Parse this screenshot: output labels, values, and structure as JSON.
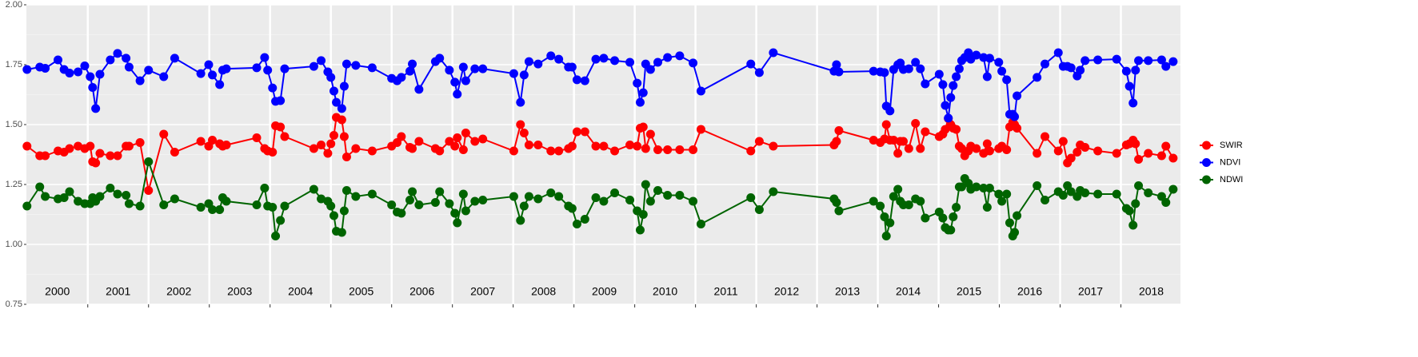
{
  "chart_data": {
    "type": "line",
    "x": [
      2000.0,
      2000.21,
      2000.3,
      2000.51,
      2000.61,
      2000.7,
      2000.84,
      2000.95,
      2001.04,
      2001.08,
      2001.13,
      2001.2,
      2001.37,
      2001.49,
      2001.63,
      2001.68,
      2001.86,
      2002.0,
      2002.25,
      2002.43,
      2002.86,
      2002.99,
      2003.05,
      2003.17,
      2003.22,
      2003.28,
      2003.78,
      2003.91,
      2003.96,
      2004.04,
      2004.09,
      2004.17,
      2004.24,
      2004.72,
      2004.84,
      2004.95,
      2005.0,
      2005.05,
      2005.09,
      2005.18,
      2005.22,
      2005.26,
      2005.41,
      2005.68,
      2006.0,
      2006.09,
      2006.16,
      2006.3,
      2006.34,
      2006.45,
      2006.72,
      2006.79,
      2006.95,
      2007.04,
      2007.08,
      2007.18,
      2007.22,
      2007.37,
      2007.5,
      2008.01,
      2008.12,
      2008.18,
      2008.26,
      2008.41,
      2008.62,
      2008.75,
      2008.91,
      2008.97,
      2009.05,
      2009.18,
      2009.36,
      2009.49,
      2009.67,
      2009.92,
      2010.04,
      2010.09,
      2010.14,
      2010.18,
      2010.26,
      2010.38,
      2010.54,
      2010.74,
      2010.96,
      2011.09,
      2011.91,
      2012.05,
      2012.28,
      2013.28,
      2013.32,
      2013.36,
      2013.93,
      2014.04,
      2014.11,
      2014.14,
      2014.2,
      2014.26,
      2014.33,
      2014.37,
      2014.42,
      2014.51,
      2014.62,
      2014.7,
      2014.78,
      2015.01,
      2015.07,
      2015.11,
      2015.16,
      2015.2,
      2015.24,
      2015.29,
      2015.34,
      2015.38,
      2015.43,
      2015.49,
      2015.53,
      2015.62,
      2015.74,
      2015.8,
      2015.84,
      2015.99,
      2016.04,
      2016.12,
      2016.17,
      2016.22,
      2016.25,
      2016.29,
      2016.62,
      2016.75,
      2016.97,
      2017.05,
      2017.12,
      2017.18,
      2017.28,
      2017.33,
      2017.41,
      2017.62,
      2017.93,
      2018.09,
      2018.14,
      2018.2,
      2018.24,
      2018.29,
      2018.45,
      2018.67,
      2018.74,
      2018.86
    ],
    "series": [
      {
        "name": "SWIR",
        "color": "#ff0000",
        "values": [
          1.41,
          1.37,
          1.37,
          1.39,
          1.385,
          1.4,
          1.41,
          1.4,
          1.41,
          1.345,
          1.34,
          1.38,
          1.37,
          1.37,
          1.41,
          1.41,
          1.425,
          1.225,
          1.46,
          1.385,
          1.43,
          1.41,
          1.435,
          1.42,
          1.41,
          1.415,
          1.445,
          1.4,
          1.39,
          1.385,
          1.495,
          1.49,
          1.45,
          1.4,
          1.415,
          1.38,
          1.42,
          1.455,
          1.53,
          1.52,
          1.45,
          1.365,
          1.4,
          1.39,
          1.41,
          1.425,
          1.45,
          1.405,
          1.4,
          1.43,
          1.4,
          1.39,
          1.43,
          1.41,
          1.445,
          1.395,
          1.465,
          1.43,
          1.44,
          1.39,
          1.5,
          1.465,
          1.415,
          1.415,
          1.39,
          1.39,
          1.4,
          1.41,
          1.47,
          1.47,
          1.41,
          1.41,
          1.39,
          1.415,
          1.41,
          1.485,
          1.49,
          1.4,
          1.46,
          1.395,
          1.395,
          1.395,
          1.395,
          1.48,
          1.39,
          1.43,
          1.41,
          1.415,
          1.43,
          1.475,
          1.435,
          1.425,
          1.44,
          1.5,
          1.435,
          1.435,
          1.38,
          1.43,
          1.43,
          1.4,
          1.505,
          1.4,
          1.47,
          1.45,
          1.46,
          1.48,
          1.525,
          1.5,
          1.485,
          1.48,
          1.41,
          1.4,
          1.37,
          1.39,
          1.41,
          1.4,
          1.38,
          1.42,
          1.39,
          1.4,
          1.41,
          1.395,
          1.49,
          1.51,
          1.5,
          1.485,
          1.38,
          1.45,
          1.39,
          1.43,
          1.34,
          1.36,
          1.385,
          1.415,
          1.405,
          1.39,
          1.38,
          1.415,
          1.42,
          1.435,
          1.42,
          1.355,
          1.38,
          1.37,
          1.41,
          1.36
        ]
      },
      {
        "name": "NDVI",
        "color": "#0000ff",
        "values": [
          1.73,
          1.74,
          1.735,
          1.77,
          1.73,
          1.715,
          1.72,
          1.745,
          1.7,
          1.655,
          1.567,
          1.71,
          1.77,
          1.797,
          1.777,
          1.74,
          1.683,
          1.727,
          1.7,
          1.777,
          1.713,
          1.75,
          1.707,
          1.667,
          1.727,
          1.733,
          1.737,
          1.78,
          1.727,
          1.653,
          1.597,
          1.6,
          1.733,
          1.743,
          1.767,
          1.72,
          1.697,
          1.64,
          1.593,
          1.567,
          1.66,
          1.753,
          1.747,
          1.737,
          1.693,
          1.683,
          1.697,
          1.723,
          1.753,
          1.647,
          1.763,
          1.777,
          1.727,
          1.677,
          1.627,
          1.74,
          1.683,
          1.733,
          1.733,
          1.713,
          1.593,
          1.707,
          1.763,
          1.753,
          1.787,
          1.773,
          1.74,
          1.74,
          1.687,
          1.683,
          1.773,
          1.777,
          1.767,
          1.76,
          1.673,
          1.593,
          1.633,
          1.753,
          1.73,
          1.76,
          1.78,
          1.787,
          1.757,
          1.64,
          1.753,
          1.717,
          1.8,
          1.723,
          1.75,
          1.72,
          1.723,
          1.72,
          1.717,
          1.577,
          1.557,
          1.73,
          1.75,
          1.757,
          1.73,
          1.733,
          1.76,
          1.733,
          1.67,
          1.71,
          1.667,
          1.58,
          1.527,
          1.613,
          1.663,
          1.7,
          1.733,
          1.767,
          1.78,
          1.8,
          1.773,
          1.79,
          1.78,
          1.7,
          1.777,
          1.76,
          1.723,
          1.687,
          1.543,
          1.543,
          1.533,
          1.62,
          1.697,
          1.753,
          1.8,
          1.743,
          1.743,
          1.737,
          1.703,
          1.727,
          1.767,
          1.77,
          1.773,
          1.723,
          1.66,
          1.59,
          1.727,
          1.767,
          1.767,
          1.77,
          1.743,
          1.763
        ]
      },
      {
        "name": "NDWI",
        "color": "#006400",
        "values": [
          1.16,
          1.24,
          1.2,
          1.19,
          1.195,
          1.22,
          1.18,
          1.17,
          1.17,
          1.195,
          1.18,
          1.2,
          1.235,
          1.21,
          1.205,
          1.17,
          1.16,
          1.345,
          1.165,
          1.19,
          1.155,
          1.17,
          1.145,
          1.145,
          1.195,
          1.18,
          1.165,
          1.235,
          1.16,
          1.155,
          1.035,
          1.1,
          1.16,
          1.23,
          1.19,
          1.18,
          1.16,
          1.12,
          1.055,
          1.05,
          1.14,
          1.225,
          1.2,
          1.21,
          1.165,
          1.135,
          1.13,
          1.185,
          1.22,
          1.165,
          1.175,
          1.22,
          1.17,
          1.13,
          1.09,
          1.21,
          1.14,
          1.18,
          1.185,
          1.2,
          1.1,
          1.16,
          1.2,
          1.19,
          1.215,
          1.2,
          1.16,
          1.15,
          1.085,
          1.105,
          1.195,
          1.18,
          1.215,
          1.185,
          1.14,
          1.06,
          1.125,
          1.25,
          1.18,
          1.225,
          1.205,
          1.205,
          1.18,
          1.085,
          1.195,
          1.145,
          1.22,
          1.19,
          1.175,
          1.14,
          1.18,
          1.16,
          1.115,
          1.035,
          1.09,
          1.2,
          1.23,
          1.18,
          1.165,
          1.165,
          1.19,
          1.18,
          1.11,
          1.135,
          1.11,
          1.07,
          1.06,
          1.06,
          1.115,
          1.155,
          1.24,
          1.24,
          1.275,
          1.255,
          1.23,
          1.24,
          1.235,
          1.155,
          1.235,
          1.21,
          1.18,
          1.21,
          1.09,
          1.035,
          1.05,
          1.12,
          1.245,
          1.185,
          1.22,
          1.205,
          1.245,
          1.22,
          1.2,
          1.225,
          1.215,
          1.21,
          1.21,
          1.15,
          1.14,
          1.08,
          1.17,
          1.245,
          1.215,
          1.2,
          1.175,
          1.23
        ]
      }
    ],
    "xlim": [
      1999.99,
      2018.98
    ],
    "xticks": [
      {
        "value": 2000.5,
        "label": "2000"
      },
      {
        "value": 2001.5,
        "label": "2001"
      },
      {
        "value": 2002.5,
        "label": "2002"
      },
      {
        "value": 2003.5,
        "label": "2003"
      },
      {
        "value": 2004.5,
        "label": "2004"
      },
      {
        "value": 2005.5,
        "label": "2005"
      },
      {
        "value": 2006.5,
        "label": "2006"
      },
      {
        "value": 2007.5,
        "label": "2007"
      },
      {
        "value": 2008.5,
        "label": "2008"
      },
      {
        "value": 2009.5,
        "label": "2009"
      },
      {
        "value": 2010.5,
        "label": "2010"
      },
      {
        "value": 2011.5,
        "label": "2011"
      },
      {
        "value": 2012.5,
        "label": "2012"
      },
      {
        "value": 2013.5,
        "label": "2013"
      },
      {
        "value": 2014.5,
        "label": "2014"
      },
      {
        "value": 2015.5,
        "label": "2015"
      },
      {
        "value": 2016.5,
        "label": "2016"
      },
      {
        "value": 2017.5,
        "label": "2017"
      },
      {
        "value": 2018.5,
        "label": "2018"
      }
    ],
    "ylim": [
      0.75,
      2.0
    ],
    "yticks": [
      {
        "value": 0.75,
        "label": "0.75"
      },
      {
        "value": 1.0,
        "label": "1.00"
      },
      {
        "value": 1.25,
        "label": "1.25"
      },
      {
        "value": 1.5,
        "label": "1.50"
      },
      {
        "value": 1.75,
        "label": "1.75"
      },
      {
        "value": 2.0,
        "label": "2.00"
      }
    ],
    "grid": true,
    "legend": "right"
  }
}
